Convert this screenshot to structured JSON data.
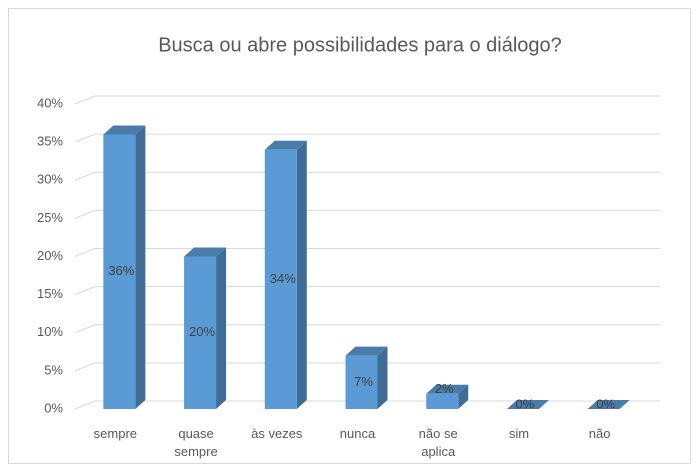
{
  "chart_data": {
    "type": "bar3d",
    "title": "Busca ou abre possibilidades para o diálogo?",
    "categories": [
      "sempre",
      "quase sempre",
      "às vezes",
      "nunca",
      "não se aplica",
      "sim",
      "não"
    ],
    "values": [
      36,
      20,
      34,
      7,
      2,
      0,
      0
    ],
    "value_labels": [
      "36%",
      "20%",
      "34%",
      "7%",
      "2%",
      "0%",
      "0%"
    ],
    "color": "#5b9bd5",
    "ylim": [
      0,
      40
    ],
    "yticks": [
      {
        "value": 0,
        "label": "0%"
      },
      {
        "value": 5,
        "label": "5%"
      },
      {
        "value": 10,
        "label": "10%"
      },
      {
        "value": 15,
        "label": "15%"
      },
      {
        "value": 20,
        "label": "20%"
      },
      {
        "value": 25,
        "label": "25%"
      },
      {
        "value": 30,
        "label": "30%"
      },
      {
        "value": 35,
        "label": "35%"
      },
      {
        "value": 40,
        "label": "40%"
      }
    ],
    "grid": true
  }
}
